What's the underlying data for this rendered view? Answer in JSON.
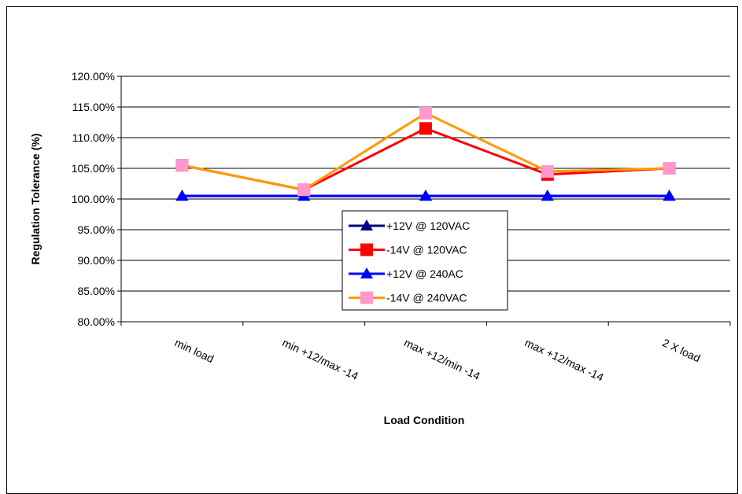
{
  "chart_data": {
    "type": "line",
    "title": "",
    "xlabel": "Load Condition",
    "ylabel": "Regulation Tolerance (%)",
    "categories": [
      "min load",
      "min +12/max -14",
      "max +12/min -14",
      "max +12/max -14",
      "2 X load"
    ],
    "ylim": [
      80,
      120
    ],
    "yticks": [
      80,
      85,
      90,
      95,
      100,
      105,
      110,
      115,
      120
    ],
    "ytick_labels": [
      "80.00%",
      "85.00%",
      "90.00%",
      "95.00%",
      "100.00%",
      "105.00%",
      "110.00%",
      "115.00%",
      "120.00%"
    ],
    "grid": "horizontal",
    "legend_position": "center",
    "series": [
      {
        "name": "+12V @ 120VAC",
        "values": [
          100.5,
          100.5,
          100.5,
          100.5,
          100.5
        ],
        "color": "#000080",
        "marker": "triangle"
      },
      {
        "name": "-14V @ 120VAC",
        "values": [
          105.5,
          101.5,
          111.5,
          104.0,
          105.0
        ],
        "color": "#ff0000",
        "marker": "square"
      },
      {
        "name": "+12V @ 240AC",
        "values": [
          100.5,
          100.5,
          100.5,
          100.5,
          100.5
        ],
        "color": "#0000ff",
        "marker": "triangle"
      },
      {
        "name": "-14V @ 240VAC",
        "values": [
          105.5,
          101.5,
          114.0,
          104.5,
          105.0
        ],
        "color": "#ff9900",
        "marker_color": "#ff99cc",
        "marker": "square"
      }
    ]
  }
}
